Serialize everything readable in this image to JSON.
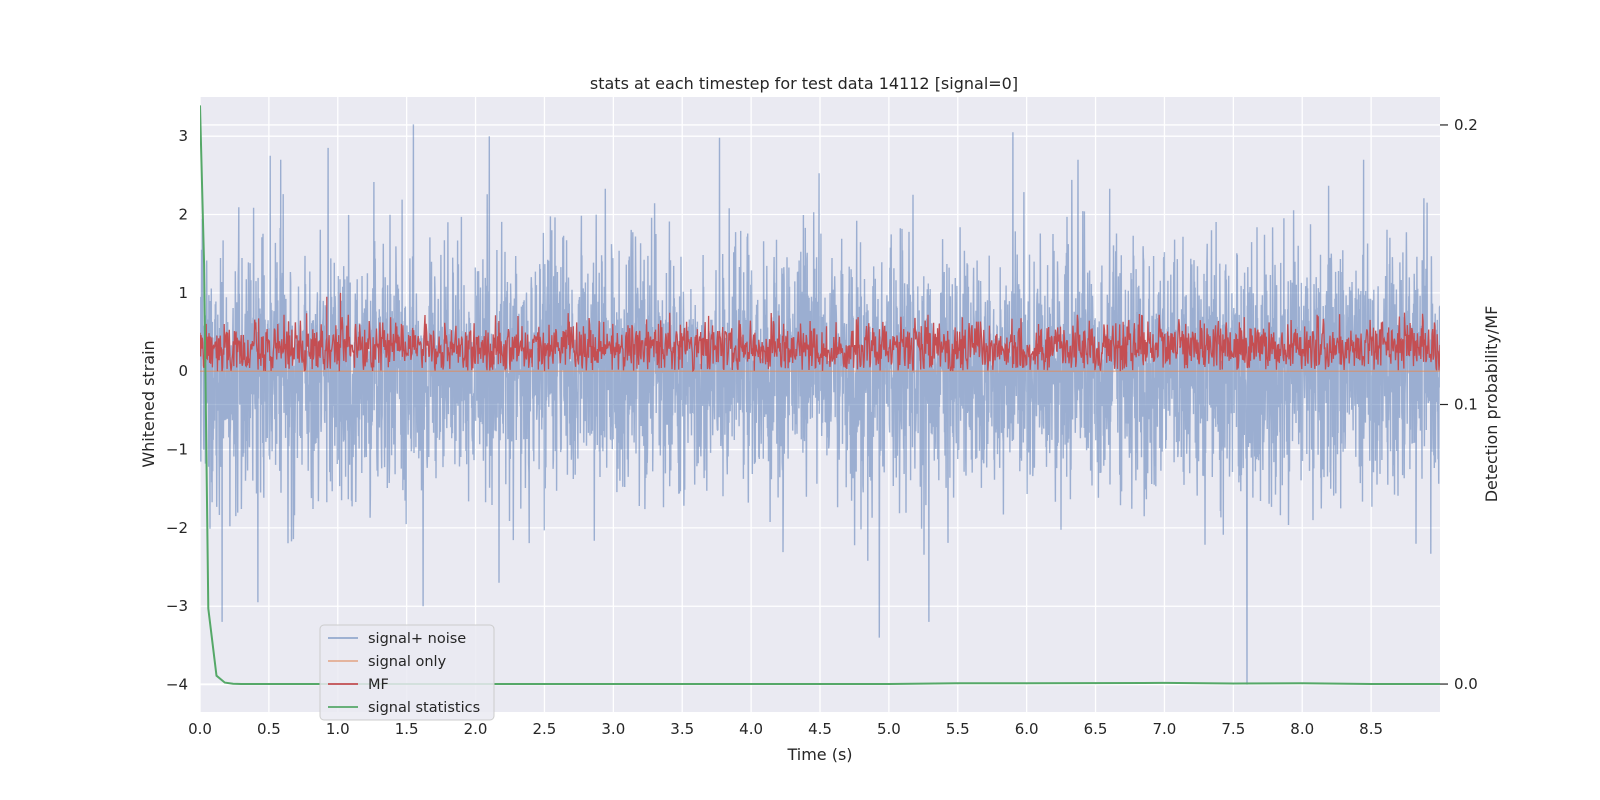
{
  "chart_data": {
    "type": "line",
    "title": "stats at each timestep for test data 14112 [signal=0]",
    "xlabel": "Time (s)",
    "ylabel": "Whitened strain",
    "y2label": "Detection probability/MF",
    "xlim": [
      0.0,
      9.0
    ],
    "ylim": [
      -4.35,
      3.5
    ],
    "y2lim": [
      -0.01,
      0.21
    ],
    "xticks": [
      0.0,
      0.5,
      1.0,
      1.5,
      2.0,
      2.5,
      3.0,
      3.5,
      4.0,
      4.5,
      5.0,
      5.5,
      6.0,
      6.5,
      7.0,
      7.5,
      8.0,
      8.5
    ],
    "xtick_labels": [
      "0.0",
      "0.5",
      "1.0",
      "1.5",
      "2.0",
      "2.5",
      "3.0",
      "3.5",
      "4.0",
      "4.5",
      "5.0",
      "5.5",
      "6.0",
      "6.5",
      "7.0",
      "7.5",
      "8.0",
      "8.5"
    ],
    "yticks": [
      3,
      2,
      1,
      0,
      -1,
      -2,
      -3,
      -4
    ],
    "ytick_labels": [
      "3",
      "2",
      "1",
      "0",
      "−1",
      "−2",
      "−3",
      "−4"
    ],
    "y2ticks": [
      0.2,
      0.1,
      0.0
    ],
    "y2tick_labels": [
      "0.2",
      "0.1",
      "0.0"
    ],
    "grid": true,
    "legend_position": "lower-left",
    "series": [
      {
        "name": "signal+ noise",
        "color": "#4c72b0",
        "axis": "left",
        "kind": "noise-trace",
        "samples": 4608,
        "duration_s": 9.0,
        "std": 0.75,
        "annotated_extremes": [
          {
            "t": 0.16,
            "v": -3.2
          },
          {
            "t": 0.42,
            "v": -2.95
          },
          {
            "t": 0.51,
            "v": 2.75
          },
          {
            "t": 0.93,
            "v": 2.85
          },
          {
            "t": 1.55,
            "v": 3.15
          },
          {
            "t": 1.62,
            "v": -3.0
          },
          {
            "t": 2.1,
            "v": 3.0
          },
          {
            "t": 3.77,
            "v": 2.98
          },
          {
            "t": 4.93,
            "v": -3.4
          },
          {
            "t": 5.29,
            "v": -3.2
          },
          {
            "t": 5.9,
            "v": 3.05
          },
          {
            "t": 7.6,
            "v": -4.0
          }
        ]
      },
      {
        "name": "signal only",
        "color": "#dd8452",
        "axis": "left",
        "kind": "flat",
        "value": 0.0
      },
      {
        "name": "MF",
        "color": "#c44e52",
        "axis": "left",
        "kind": "envelope",
        "mean": 0.3,
        "min": 0.0,
        "peaks": [
          {
            "t": 0.92,
            "v": 0.95
          },
          {
            "t": 1.02,
            "v": 1.0
          }
        ]
      },
      {
        "name": "signal statistics",
        "color": "#55a868",
        "axis": "right",
        "kind": "curve",
        "x": [
          0.0,
          0.03,
          0.06,
          0.12,
          0.18,
          0.24,
          0.3,
          0.5,
          1.0,
          2.0,
          3.0,
          4.0,
          5.0,
          5.5,
          6.0,
          7.0,
          7.5,
          8.0,
          8.5,
          9.0
        ],
        "values": [
          0.207,
          0.15,
          0.027,
          0.003,
          0.0005,
          0.0001,
          0.0,
          0.0,
          0.0,
          0.0,
          0.0,
          0.0,
          0.0,
          0.0003,
          0.0003,
          0.0004,
          0.0002,
          0.0003,
          0.0,
          0.0
        ]
      }
    ]
  }
}
